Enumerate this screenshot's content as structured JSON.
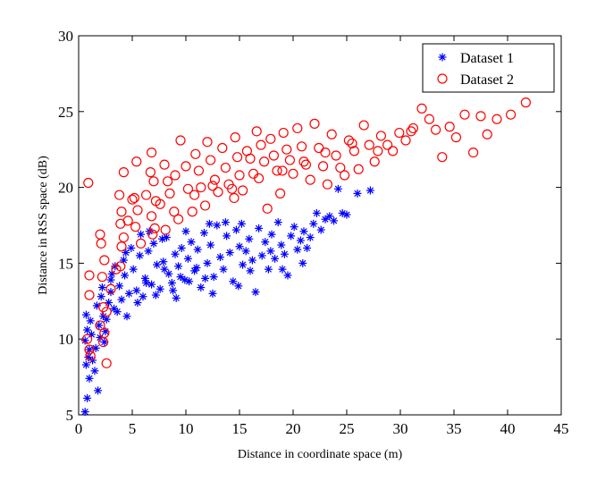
{
  "chart_data": {
    "type": "scatter",
    "title": "",
    "xlabel": "Distance in coordinate space (m)",
    "ylabel": "Distance in RSS space (dB)",
    "xlim": [
      0,
      45
    ],
    "ylim": [
      5,
      30
    ],
    "xticks": [
      "0",
      "5",
      "10",
      "15",
      "20",
      "25",
      "30",
      "35",
      "40",
      "45"
    ],
    "yticks": [
      "5",
      "10",
      "15",
      "20",
      "25",
      "30"
    ],
    "grid": false,
    "legend_position": "top-right",
    "series": [
      {
        "name": "Dataset 1",
        "marker": "asterisk",
        "color": "#0000ff",
        "points": [
          [
            0.6,
            5.2
          ],
          [
            0.8,
            6.1
          ],
          [
            1.0,
            7.4
          ],
          [
            0.7,
            8.3
          ],
          [
            0.9,
            8.8
          ],
          [
            1.0,
            9.3
          ],
          [
            0.6,
            9.9
          ],
          [
            0.8,
            10.6
          ],
          [
            1.1,
            11.2
          ],
          [
            0.7,
            11.6
          ],
          [
            1.5,
            7.9
          ],
          [
            1.8,
            6.6
          ],
          [
            1.6,
            9.4
          ],
          [
            2.0,
            10.1
          ],
          [
            1.9,
            10.9
          ],
          [
            2.3,
            11.5
          ],
          [
            1.7,
            12.2
          ],
          [
            2.1,
            12.8
          ],
          [
            2.4,
            9.8
          ],
          [
            2.6,
            11.3
          ],
          [
            2.8,
            12.4
          ],
          [
            3.0,
            13.1
          ],
          [
            3.3,
            12.0
          ],
          [
            3.0,
            13.9
          ],
          [
            3.4,
            14.8
          ],
          [
            3.8,
            13.5
          ],
          [
            4.0,
            12.6
          ],
          [
            4.3,
            14.2
          ],
          [
            4.5,
            11.5
          ],
          [
            4.7,
            13.0
          ],
          [
            4.2,
            15.2
          ],
          [
            4.9,
            16.0
          ],
          [
            5.1,
            14.6
          ],
          [
            5.4,
            13.2
          ],
          [
            5.7,
            15.5
          ],
          [
            6.0,
            12.8
          ],
          [
            6.2,
            14.0
          ],
          [
            6.5,
            15.8
          ],
          [
            6.8,
            13.6
          ],
          [
            7.0,
            16.3
          ],
          [
            7.3,
            14.9
          ],
          [
            7.6,
            13.3
          ],
          [
            7.9,
            15.1
          ],
          [
            8.2,
            16.7
          ],
          [
            8.4,
            14.3
          ],
          [
            8.7,
            13.7
          ],
          [
            9.0,
            15.6
          ],
          [
            9.3,
            14.8
          ],
          [
            9.6,
            16.0
          ],
          [
            9.9,
            13.9
          ],
          [
            10.2,
            15.3
          ],
          [
            10.5,
            16.4
          ],
          [
            10.8,
            14.5
          ],
          [
            11.1,
            15.9
          ],
          [
            11.4,
            13.4
          ],
          [
            11.7,
            17.0
          ],
          [
            12.0,
            15.0
          ],
          [
            12.3,
            16.2
          ],
          [
            12.6,
            14.1
          ],
          [
            12.9,
            17.5
          ],
          [
            13.2,
            15.4
          ],
          [
            13.5,
            14.6
          ],
          [
            13.8,
            16.8
          ],
          [
            14.1,
            15.7
          ],
          [
            14.4,
            13.8
          ],
          [
            14.7,
            17.2
          ],
          [
            15.0,
            16.1
          ],
          [
            15.3,
            14.9
          ],
          [
            15.6,
            15.8
          ],
          [
            15.9,
            16.6
          ],
          [
            16.2,
            15.2
          ],
          [
            16.5,
            13.1
          ],
          [
            16.8,
            17.3
          ],
          [
            17.1,
            15.5
          ],
          [
            17.4,
            16.4
          ],
          [
            17.7,
            14.6
          ],
          [
            18.0,
            16.9
          ],
          [
            18.3,
            15.3
          ],
          [
            18.6,
            17.7
          ],
          [
            18.9,
            16.2
          ],
          [
            19.2,
            15.6
          ],
          [
            19.5,
            14.2
          ],
          [
            19.8,
            16.8
          ],
          [
            20.1,
            17.4
          ],
          [
            20.4,
            15.9
          ],
          [
            20.7,
            16.5
          ],
          [
            21.0,
            17.1
          ],
          [
            21.3,
            16.0
          ],
          [
            21.6,
            16.7
          ],
          [
            21.9,
            17.6
          ],
          [
            22.2,
            18.3
          ],
          [
            22.6,
            17.2
          ],
          [
            23.0,
            17.9
          ],
          [
            23.4,
            18.1
          ],
          [
            23.8,
            17.8
          ],
          [
            24.2,
            19.9
          ],
          [
            24.6,
            18.3
          ],
          [
            26.0,
            19.6
          ],
          [
            27.2,
            19.8
          ],
          [
            25.0,
            18.2
          ],
          [
            5.5,
            12.4
          ],
          [
            6.3,
            13.7
          ],
          [
            7.2,
            12.9
          ],
          [
            8.0,
            14.6
          ],
          [
            8.8,
            13.2
          ],
          [
            9.5,
            14.1
          ],
          [
            10.3,
            13.8
          ],
          [
            11.0,
            14.7
          ],
          [
            11.8,
            14.0
          ],
          [
            12.5,
            13.0
          ],
          [
            3.6,
            11.8
          ],
          [
            2.5,
            10.5
          ],
          [
            1.3,
            8.6
          ],
          [
            1.2,
            10.3
          ],
          [
            2.2,
            13.4
          ],
          [
            3.1,
            14.3
          ],
          [
            4.4,
            15.7
          ],
          [
            5.8,
            16.9
          ],
          [
            6.6,
            17.1
          ],
          [
            7.8,
            16.6
          ],
          [
            12.2,
            17.6
          ],
          [
            13.7,
            17.7
          ],
          [
            15.2,
            17.6
          ],
          [
            16.0,
            14.5
          ],
          [
            17.9,
            15.8
          ],
          [
            19.0,
            14.6
          ],
          [
            20.9,
            15.0
          ],
          [
            14.9,
            13.5
          ],
          [
            10.0,
            17.1
          ],
          [
            9.1,
            12.7
          ]
        ]
      },
      {
        "name": "Dataset 2",
        "marker": "circle",
        "color": "#ff0000",
        "points": [
          [
            0.9,
            20.3
          ],
          [
            1.0,
            14.2
          ],
          [
            1.0,
            12.9
          ],
          [
            0.8,
            10.0
          ],
          [
            1.0,
            9.3
          ],
          [
            1.1,
            8.9
          ],
          [
            2.0,
            16.9
          ],
          [
            2.1,
            16.3
          ],
          [
            2.4,
            15.2
          ],
          [
            2.2,
            14.1
          ],
          [
            2.3,
            12.1
          ],
          [
            2.6,
            11.8
          ],
          [
            2.0,
            10.9
          ],
          [
            2.4,
            10.4
          ],
          [
            2.3,
            9.8
          ],
          [
            2.6,
            8.4
          ],
          [
            3.8,
            19.5
          ],
          [
            4.0,
            18.4
          ],
          [
            3.9,
            17.6
          ],
          [
            4.2,
            16.7
          ],
          [
            4.0,
            16.1
          ],
          [
            3.9,
            14.8
          ],
          [
            4.2,
            21.0
          ],
          [
            5.2,
            19.3
          ],
          [
            5.5,
            18.5
          ],
          [
            5.3,
            17.4
          ],
          [
            5.8,
            16.3
          ],
          [
            5.4,
            21.7
          ],
          [
            6.7,
            21.0
          ],
          [
            7.0,
            20.4
          ],
          [
            7.2,
            19.1
          ],
          [
            6.8,
            18.1
          ],
          [
            7.1,
            17.3
          ],
          [
            6.9,
            16.9
          ],
          [
            6.8,
            22.3
          ],
          [
            8.0,
            21.5
          ],
          [
            8.3,
            20.4
          ],
          [
            8.5,
            19.6
          ],
          [
            8.9,
            18.4
          ],
          [
            8.1,
            17.2
          ],
          [
            9.0,
            20.8
          ],
          [
            9.5,
            23.1
          ],
          [
            10.0,
            21.4
          ],
          [
            10.2,
            19.9
          ],
          [
            10.6,
            18.4
          ],
          [
            10.9,
            22.2
          ],
          [
            11.2,
            21.1
          ],
          [
            11.4,
            20.0
          ],
          [
            11.8,
            18.8
          ],
          [
            12.0,
            23.0
          ],
          [
            12.3,
            21.8
          ],
          [
            12.7,
            20.5
          ],
          [
            13.0,
            19.7
          ],
          [
            13.4,
            22.6
          ],
          [
            13.7,
            21.3
          ],
          [
            14.0,
            20.2
          ],
          [
            14.3,
            19.9
          ],
          [
            14.6,
            23.3
          ],
          [
            14.8,
            22.0
          ],
          [
            15.0,
            20.8
          ],
          [
            15.3,
            19.8
          ],
          [
            15.7,
            22.4
          ],
          [
            16.0,
            21.9
          ],
          [
            16.3,
            20.9
          ],
          [
            16.6,
            23.7
          ],
          [
            17.0,
            22.8
          ],
          [
            17.3,
            21.7
          ],
          [
            17.6,
            18.6
          ],
          [
            17.9,
            23.2
          ],
          [
            18.2,
            22.1
          ],
          [
            18.5,
            21.1
          ],
          [
            18.8,
            19.6
          ],
          [
            19.1,
            23.6
          ],
          [
            19.4,
            22.5
          ],
          [
            19.7,
            21.8
          ],
          [
            20.0,
            20.9
          ],
          [
            20.4,
            23.9
          ],
          [
            20.8,
            22.7
          ],
          [
            21.2,
            21.5
          ],
          [
            21.6,
            20.5
          ],
          [
            22.0,
            24.2
          ],
          [
            22.4,
            22.6
          ],
          [
            22.8,
            21.4
          ],
          [
            23.2,
            20.2
          ],
          [
            23.6,
            23.5
          ],
          [
            24.0,
            22.1
          ],
          [
            24.4,
            21.3
          ],
          [
            24.8,
            20.8
          ],
          [
            25.2,
            23.1
          ],
          [
            25.7,
            22.4
          ],
          [
            26.1,
            21.2
          ],
          [
            26.6,
            24.1
          ],
          [
            27.1,
            22.8
          ],
          [
            27.6,
            21.7
          ],
          [
            28.2,
            23.4
          ],
          [
            28.8,
            22.8
          ],
          [
            29.3,
            22.4
          ],
          [
            29.9,
            23.6
          ],
          [
            30.5,
            23.1
          ],
          [
            31.2,
            23.9
          ],
          [
            32.0,
            25.2
          ],
          [
            32.7,
            24.5
          ],
          [
            33.3,
            23.8
          ],
          [
            33.9,
            22.0
          ],
          [
            34.6,
            24.0
          ],
          [
            35.2,
            23.3
          ],
          [
            36.0,
            24.8
          ],
          [
            36.8,
            22.3
          ],
          [
            37.5,
            24.7
          ],
          [
            38.1,
            23.5
          ],
          [
            39.0,
            24.5
          ],
          [
            40.3,
            24.8
          ],
          [
            41.7,
            25.6
          ],
          [
            31.0,
            23.7
          ],
          [
            27.9,
            22.4
          ],
          [
            25.5,
            22.9
          ],
          [
            23.0,
            22.3
          ],
          [
            21.0,
            21.7
          ],
          [
            19.0,
            21.1
          ],
          [
            16.8,
            20.6
          ],
          [
            14.5,
            19.3
          ],
          [
            12.5,
            20.1
          ],
          [
            10.8,
            19.5
          ],
          [
            9.3,
            17.9
          ],
          [
            7.6,
            18.9
          ],
          [
            6.3,
            19.5
          ],
          [
            5.0,
            19.2
          ],
          [
            4.6,
            17.8
          ],
          [
            3.5,
            14.6
          ],
          [
            3.0,
            13.3
          ]
        ]
      }
    ]
  }
}
